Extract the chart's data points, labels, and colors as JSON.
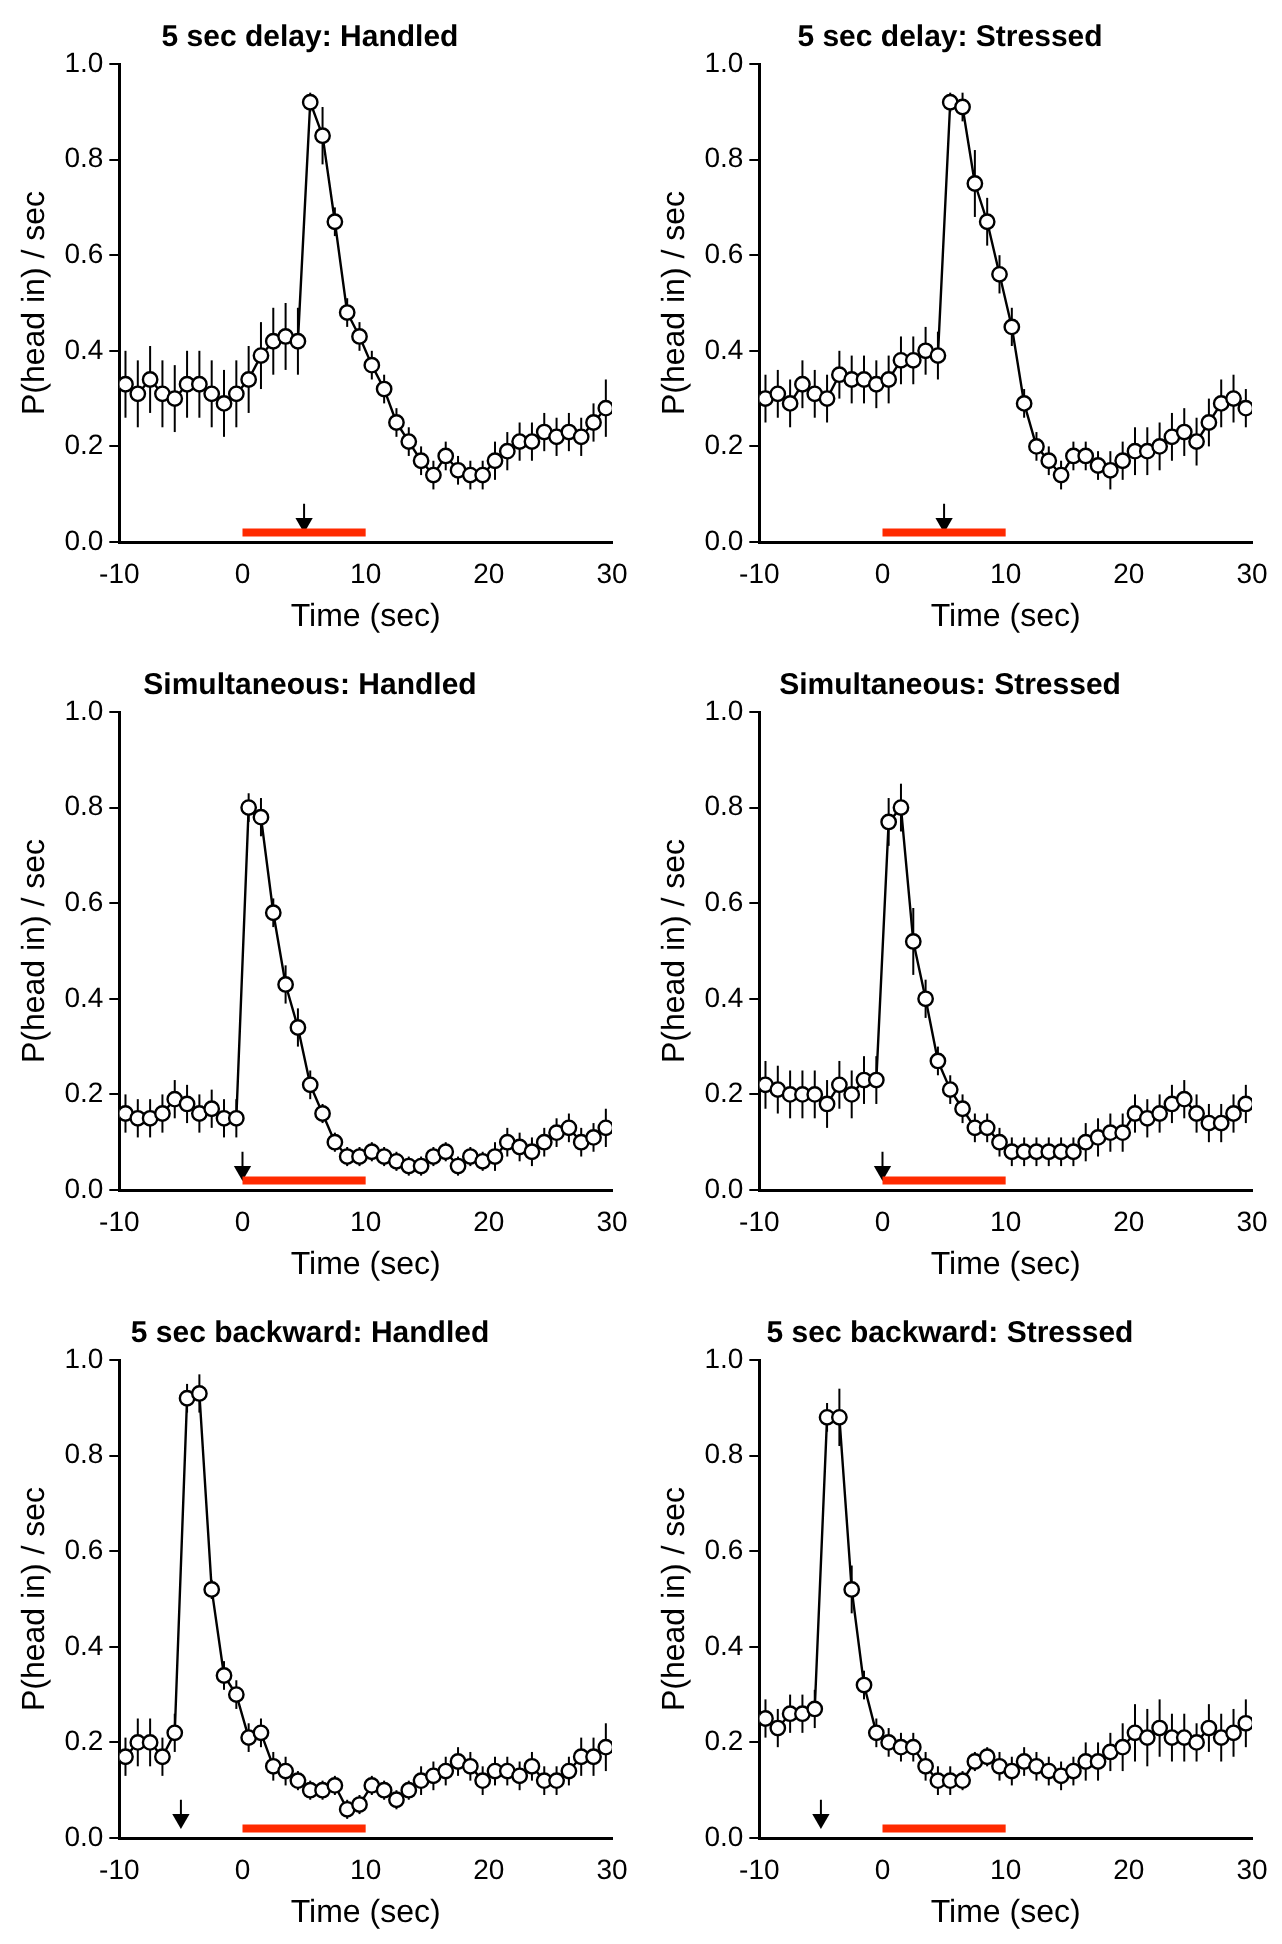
{
  "chart_data": [
    {
      "type": "line",
      "title": "5 sec delay: Handled",
      "xlabel": "Time (sec)",
      "ylabel": "P(head in) / sec",
      "marker": "circle",
      "line_style": "solid",
      "legend": false,
      "grid": false,
      "x": [
        -9.5,
        -8.5,
        -7.5,
        -6.5,
        -5.5,
        -4.5,
        -3.5,
        -2.5,
        -1.5,
        -0.5,
        0.5,
        1.5,
        2.5,
        3.5,
        4.5,
        5.5,
        6.5,
        7.5,
        8.5,
        9.5,
        10.5,
        11.5,
        12.5,
        13.5,
        14.5,
        15.5,
        16.5,
        17.5,
        18.5,
        19.5,
        20.5,
        21.5,
        22.5,
        23.5,
        24.5,
        25.5,
        26.5,
        27.5,
        28.5,
        29.5
      ],
      "xlim": [
        -10,
        30
      ],
      "xticks": [
        -10,
        0,
        10,
        20,
        30
      ],
      "ylim": [
        0,
        1
      ],
      "yticks": [
        {
          "value": 0,
          "label": "0.0"
        },
        {
          "value": 0.2,
          "label": "0.2"
        },
        {
          "value": 0.4,
          "label": "0.4"
        },
        {
          "value": 0.6,
          "label": "0.6"
        },
        {
          "value": 0.8,
          "label": "0.8"
        },
        {
          "value": 1,
          "label": "1.0"
        }
      ],
      "series": [
        {
          "x": [
            0,
            10
          ],
          "values": [
            0.02,
            0.02
          ],
          "color": "#ff2a00",
          "marker": "none"
        },
        {
          "type": "scatter",
          "x": [
            5
          ],
          "values": [
            0.04
          ],
          "errors": [
            [
              0.04,
              0.08
            ]
          ],
          "color": "#000000",
          "marker": "triangle"
        },
        {
          "color": "#000000",
          "values": [
            0.33,
            0.31,
            0.34,
            0.31,
            0.3,
            0.33,
            0.33,
            0.31,
            0.29,
            0.31,
            0.34,
            0.39,
            0.42,
            0.43,
            0.42,
            0.92,
            0.85,
            0.67,
            0.48,
            0.43,
            0.37,
            0.32,
            0.25,
            0.21,
            0.17,
            0.14,
            0.18,
            0.15,
            0.14,
            0.14,
            0.17,
            0.19,
            0.21,
            0.21,
            0.23,
            0.22,
            0.23,
            0.22,
            0.25,
            0.28
          ],
          "errors": [
            0.07,
            0.07,
            0.07,
            0.07,
            0.07,
            0.07,
            0.07,
            0.07,
            0.07,
            0.07,
            0.07,
            0.07,
            0.07,
            0.07,
            0.07,
            0.02,
            0.06,
            0.03,
            0.03,
            0.03,
            0.03,
            0.03,
            0.03,
            0.03,
            0.03,
            0.03,
            0.03,
            0.03,
            0.03,
            0.03,
            0.04,
            0.04,
            0.04,
            0.04,
            0.04,
            0.04,
            0.04,
            0.04,
            0.04,
            0.06
          ]
        }
      ]
    },
    {
      "type": "line",
      "title": "5 sec delay: Stressed",
      "xlabel": "Time (sec)",
      "ylabel": "P(head in) / sec",
      "marker": "circle",
      "line_style": "solid",
      "legend": false,
      "grid": false,
      "x": [
        -9.5,
        -8.5,
        -7.5,
        -6.5,
        -5.5,
        -4.5,
        -3.5,
        -2.5,
        -1.5,
        -0.5,
        0.5,
        1.5,
        2.5,
        3.5,
        4.5,
        5.5,
        6.5,
        7.5,
        8.5,
        9.5,
        10.5,
        11.5,
        12.5,
        13.5,
        14.5,
        15.5,
        16.5,
        17.5,
        18.5,
        19.5,
        20.5,
        21.5,
        22.5,
        23.5,
        24.5,
        25.5,
        26.5,
        27.5,
        28.5,
        29.5
      ],
      "xlim": [
        -10,
        30
      ],
      "xticks": [
        -10,
        0,
        10,
        20,
        30
      ],
      "ylim": [
        0,
        1
      ],
      "yticks": [
        {
          "value": 0,
          "label": "0.0"
        },
        {
          "value": 0.2,
          "label": "0.2"
        },
        {
          "value": 0.4,
          "label": "0.4"
        },
        {
          "value": 0.6,
          "label": "0.6"
        },
        {
          "value": 0.8,
          "label": "0.8"
        },
        {
          "value": 1,
          "label": "1.0"
        }
      ],
      "series": [
        {
          "x": [
            0,
            10
          ],
          "values": [
            0.02,
            0.02
          ],
          "color": "#ff2a00",
          "marker": "none"
        },
        {
          "type": "scatter",
          "x": [
            5
          ],
          "values": [
            0.04
          ],
          "errors": [
            [
              0.04,
              0.08
            ]
          ],
          "color": "#000000",
          "marker": "triangle"
        },
        {
          "color": "#000000",
          "values": [
            0.3,
            0.31,
            0.29,
            0.33,
            0.31,
            0.3,
            0.35,
            0.34,
            0.34,
            0.33,
            0.34,
            0.38,
            0.38,
            0.4,
            0.39,
            0.92,
            0.91,
            0.75,
            0.67,
            0.56,
            0.45,
            0.29,
            0.2,
            0.17,
            0.14,
            0.18,
            0.18,
            0.16,
            0.15,
            0.17,
            0.19,
            0.19,
            0.2,
            0.22,
            0.23,
            0.21,
            0.25,
            0.29,
            0.3,
            0.28
          ],
          "errors": [
            0.05,
            0.05,
            0.05,
            0.05,
            0.05,
            0.05,
            0.05,
            0.05,
            0.05,
            0.05,
            0.05,
            0.05,
            0.05,
            0.05,
            0.05,
            0.02,
            0.03,
            0.07,
            0.05,
            0.04,
            0.04,
            0.03,
            0.03,
            0.03,
            0.03,
            0.03,
            0.03,
            0.03,
            0.04,
            0.04,
            0.05,
            0.05,
            0.05,
            0.05,
            0.05,
            0.05,
            0.05,
            0.05,
            0.05,
            0.04
          ]
        }
      ]
    },
    {
      "type": "line",
      "title": "Simultaneous: Handled",
      "xlabel": "Time (sec)",
      "ylabel": "P(head in) / sec",
      "marker": "circle",
      "line_style": "solid",
      "legend": false,
      "grid": false,
      "x": [
        -9.5,
        -8.5,
        -7.5,
        -6.5,
        -5.5,
        -4.5,
        -3.5,
        -2.5,
        -1.5,
        -0.5,
        0.5,
        1.5,
        2.5,
        3.5,
        4.5,
        5.5,
        6.5,
        7.5,
        8.5,
        9.5,
        10.5,
        11.5,
        12.5,
        13.5,
        14.5,
        15.5,
        16.5,
        17.5,
        18.5,
        19.5,
        20.5,
        21.5,
        22.5,
        23.5,
        24.5,
        25.5,
        26.5,
        27.5,
        28.5,
        29.5
      ],
      "xlim": [
        -10,
        30
      ],
      "xticks": [
        -10,
        0,
        10,
        20,
        30
      ],
      "ylim": [
        0,
        1
      ],
      "yticks": [
        {
          "value": 0,
          "label": "0.0"
        },
        {
          "value": 0.2,
          "label": "0.2"
        },
        {
          "value": 0.4,
          "label": "0.4"
        },
        {
          "value": 0.6,
          "label": "0.6"
        },
        {
          "value": 0.8,
          "label": "0.8"
        },
        {
          "value": 1,
          "label": "1.0"
        }
      ],
      "series": [
        {
          "x": [
            0,
            10
          ],
          "values": [
            0.02,
            0.02
          ],
          "color": "#ff2a00",
          "marker": "none"
        },
        {
          "type": "scatter",
          "x": [
            0
          ],
          "values": [
            0.04
          ],
          "errors": [
            [
              0.04,
              0.08
            ]
          ],
          "color": "#000000",
          "marker": "triangle"
        },
        {
          "color": "#000000",
          "values": [
            0.16,
            0.15,
            0.15,
            0.16,
            0.19,
            0.18,
            0.16,
            0.17,
            0.15,
            0.15,
            0.8,
            0.78,
            0.58,
            0.43,
            0.34,
            0.22,
            0.16,
            0.1,
            0.07,
            0.07,
            0.08,
            0.07,
            0.06,
            0.05,
            0.05,
            0.07,
            0.08,
            0.05,
            0.07,
            0.06,
            0.07,
            0.1,
            0.09,
            0.08,
            0.1,
            0.12,
            0.13,
            0.1,
            0.11,
            0.13
          ],
          "errors": [
            0.04,
            0.04,
            0.04,
            0.04,
            0.04,
            0.04,
            0.04,
            0.04,
            0.04,
            0.04,
            0.03,
            0.04,
            0.03,
            0.04,
            0.04,
            0.03,
            0.02,
            0.02,
            0.02,
            0.02,
            0.02,
            0.02,
            0.02,
            0.02,
            0.02,
            0.02,
            0.02,
            0.02,
            0.02,
            0.02,
            0.03,
            0.03,
            0.03,
            0.03,
            0.03,
            0.03,
            0.03,
            0.03,
            0.03,
            0.04
          ]
        }
      ]
    },
    {
      "type": "line",
      "title": "Simultaneous: Stressed",
      "xlabel": "Time (sec)",
      "ylabel": "P(head in) / sec",
      "marker": "circle",
      "line_style": "solid",
      "legend": false,
      "grid": false,
      "x": [
        -9.5,
        -8.5,
        -7.5,
        -6.5,
        -5.5,
        -4.5,
        -3.5,
        -2.5,
        -1.5,
        -0.5,
        0.5,
        1.5,
        2.5,
        3.5,
        4.5,
        5.5,
        6.5,
        7.5,
        8.5,
        9.5,
        10.5,
        11.5,
        12.5,
        13.5,
        14.5,
        15.5,
        16.5,
        17.5,
        18.5,
        19.5,
        20.5,
        21.5,
        22.5,
        23.5,
        24.5,
        25.5,
        26.5,
        27.5,
        28.5,
        29.5
      ],
      "xlim": [
        -10,
        30
      ],
      "xticks": [
        -10,
        0,
        10,
        20,
        30
      ],
      "ylim": [
        0,
        1
      ],
      "yticks": [
        {
          "value": 0,
          "label": "0.0"
        },
        {
          "value": 0.2,
          "label": "0.2"
        },
        {
          "value": 0.4,
          "label": "0.4"
        },
        {
          "value": 0.6,
          "label": "0.6"
        },
        {
          "value": 0.8,
          "label": "0.8"
        },
        {
          "value": 1,
          "label": "1.0"
        }
      ],
      "series": [
        {
          "x": [
            0,
            10
          ],
          "values": [
            0.02,
            0.02
          ],
          "color": "#ff2a00",
          "marker": "none"
        },
        {
          "type": "scatter",
          "x": [
            0
          ],
          "values": [
            0.04
          ],
          "errors": [
            [
              0.04,
              0.08
            ]
          ],
          "color": "#000000",
          "marker": "triangle"
        },
        {
          "color": "#000000",
          "values": [
            0.22,
            0.21,
            0.2,
            0.2,
            0.2,
            0.18,
            0.22,
            0.2,
            0.23,
            0.23,
            0.77,
            0.8,
            0.52,
            0.4,
            0.27,
            0.21,
            0.17,
            0.13,
            0.13,
            0.1,
            0.08,
            0.08,
            0.08,
            0.08,
            0.08,
            0.08,
            0.1,
            0.11,
            0.12,
            0.12,
            0.16,
            0.15,
            0.16,
            0.18,
            0.19,
            0.16,
            0.14,
            0.14,
            0.16,
            0.18
          ],
          "errors": [
            0.05,
            0.05,
            0.05,
            0.05,
            0.05,
            0.05,
            0.05,
            0.05,
            0.05,
            0.05,
            0.05,
            0.05,
            0.07,
            0.04,
            0.03,
            0.03,
            0.03,
            0.03,
            0.03,
            0.03,
            0.03,
            0.03,
            0.03,
            0.03,
            0.03,
            0.03,
            0.04,
            0.04,
            0.04,
            0.04,
            0.04,
            0.04,
            0.04,
            0.04,
            0.04,
            0.04,
            0.04,
            0.04,
            0.04,
            0.04
          ]
        }
      ]
    },
    {
      "type": "line",
      "title": "5 sec backward: Handled",
      "xlabel": "Time (sec)",
      "ylabel": "P(head in) / sec",
      "marker": "circle",
      "line_style": "solid",
      "legend": false,
      "grid": false,
      "x": [
        -9.5,
        -8.5,
        -7.5,
        -6.5,
        -5.5,
        -4.5,
        -3.5,
        -2.5,
        -1.5,
        -0.5,
        0.5,
        1.5,
        2.5,
        3.5,
        4.5,
        5.5,
        6.5,
        7.5,
        8.5,
        9.5,
        10.5,
        11.5,
        12.5,
        13.5,
        14.5,
        15.5,
        16.5,
        17.5,
        18.5,
        19.5,
        20.5,
        21.5,
        22.5,
        23.5,
        24.5,
        25.5,
        26.5,
        27.5,
        28.5,
        29.5
      ],
      "xlim": [
        -10,
        30
      ],
      "xticks": [
        -10,
        0,
        10,
        20,
        30
      ],
      "ylim": [
        0,
        1
      ],
      "yticks": [
        {
          "value": 0,
          "label": "0.0"
        },
        {
          "value": 0.2,
          "label": "0.2"
        },
        {
          "value": 0.4,
          "label": "0.4"
        },
        {
          "value": 0.6,
          "label": "0.6"
        },
        {
          "value": 0.8,
          "label": "0.8"
        },
        {
          "value": 1,
          "label": "1.0"
        }
      ],
      "series": [
        {
          "x": [
            0,
            10
          ],
          "values": [
            0.02,
            0.02
          ],
          "color": "#ff2a00",
          "marker": "none"
        },
        {
          "type": "scatter",
          "x": [
            -5
          ],
          "values": [
            0.04
          ],
          "errors": [
            [
              0.04,
              0.08
            ]
          ],
          "color": "#000000",
          "marker": "triangle"
        },
        {
          "color": "#000000",
          "values": [
            0.17,
            0.2,
            0.2,
            0.17,
            0.22,
            0.92,
            0.93,
            0.52,
            0.34,
            0.3,
            0.21,
            0.22,
            0.15,
            0.14,
            0.12,
            0.1,
            0.1,
            0.11,
            0.06,
            0.07,
            0.11,
            0.1,
            0.08,
            0.1,
            0.12,
            0.13,
            0.14,
            0.16,
            0.15,
            0.12,
            0.14,
            0.14,
            0.13,
            0.15,
            0.12,
            0.12,
            0.14,
            0.17,
            0.17,
            0.19
          ],
          "errors": [
            0.04,
            0.05,
            0.05,
            0.04,
            0.04,
            0.03,
            0.04,
            0.02,
            0.03,
            0.03,
            0.03,
            0.03,
            0.03,
            0.03,
            0.02,
            0.02,
            0.02,
            0.02,
            0.02,
            0.02,
            0.02,
            0.02,
            0.02,
            0.02,
            0.03,
            0.03,
            0.03,
            0.03,
            0.03,
            0.03,
            0.03,
            0.03,
            0.03,
            0.03,
            0.03,
            0.03,
            0.03,
            0.04,
            0.04,
            0.05
          ]
        }
      ]
    },
    {
      "type": "line",
      "title": "5 sec backward: Stressed",
      "xlabel": "Time (sec)",
      "ylabel": "P(head in) / sec",
      "marker": "circle",
      "line_style": "solid",
      "legend": false,
      "grid": false,
      "x": [
        -9.5,
        -8.5,
        -7.5,
        -6.5,
        -5.5,
        -4.5,
        -3.5,
        -2.5,
        -1.5,
        -0.5,
        0.5,
        1.5,
        2.5,
        3.5,
        4.5,
        5.5,
        6.5,
        7.5,
        8.5,
        9.5,
        10.5,
        11.5,
        12.5,
        13.5,
        14.5,
        15.5,
        16.5,
        17.5,
        18.5,
        19.5,
        20.5,
        21.5,
        22.5,
        23.5,
        24.5,
        25.5,
        26.5,
        27.5,
        28.5,
        29.5
      ],
      "xlim": [
        -10,
        30
      ],
      "xticks": [
        -10,
        0,
        10,
        20,
        30
      ],
      "ylim": [
        0,
        1
      ],
      "yticks": [
        {
          "value": 0,
          "label": "0.0"
        },
        {
          "value": 0.2,
          "label": "0.2"
        },
        {
          "value": 0.4,
          "label": "0.4"
        },
        {
          "value": 0.6,
          "label": "0.6"
        },
        {
          "value": 0.8,
          "label": "0.8"
        },
        {
          "value": 1,
          "label": "1.0"
        }
      ],
      "series": [
        {
          "x": [
            0,
            10
          ],
          "values": [
            0.02,
            0.02
          ],
          "color": "#ff2a00",
          "marker": "none"
        },
        {
          "type": "scatter",
          "x": [
            -5
          ],
          "values": [
            0.04
          ],
          "errors": [
            [
              0.04,
              0.08
            ]
          ],
          "color": "#000000",
          "marker": "triangle"
        },
        {
          "color": "#000000",
          "values": [
            0.25,
            0.23,
            0.26,
            0.26,
            0.27,
            0.88,
            0.88,
            0.52,
            0.32,
            0.22,
            0.2,
            0.19,
            0.19,
            0.15,
            0.12,
            0.12,
            0.12,
            0.16,
            0.17,
            0.15,
            0.14,
            0.16,
            0.15,
            0.14,
            0.13,
            0.14,
            0.16,
            0.16,
            0.18,
            0.19,
            0.22,
            0.21,
            0.23,
            0.21,
            0.21,
            0.2,
            0.23,
            0.21,
            0.22,
            0.24
          ],
          "errors": [
            0.04,
            0.04,
            0.04,
            0.04,
            0.04,
            0.03,
            0.06,
            0.05,
            0.03,
            0.03,
            0.03,
            0.03,
            0.03,
            0.03,
            0.03,
            0.03,
            0.02,
            0.02,
            0.02,
            0.03,
            0.03,
            0.03,
            0.03,
            0.03,
            0.03,
            0.03,
            0.04,
            0.04,
            0.04,
            0.05,
            0.06,
            0.06,
            0.06,
            0.05,
            0.05,
            0.04,
            0.05,
            0.05,
            0.05,
            0.05
          ]
        }
      ]
    }
  ]
}
